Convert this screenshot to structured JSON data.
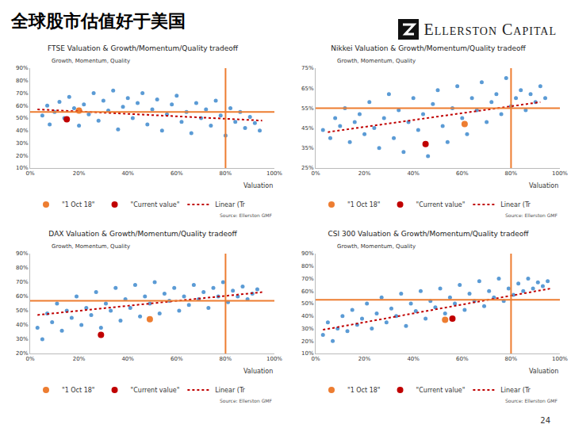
{
  "title": "全球股市估值好于美国",
  "logo": "Ellerston Capital",
  "page": "24",
  "chart_data": [
    {
      "type": "scatter",
      "title": "FTSE Valuation & Growth/Momentum/Quality tradeoff",
      "x_label": "Valuation",
      "y_label": "Growth, Momentum, Quality",
      "source": "Source: Ellerston GMF",
      "grid": false,
      "xlim": [
        0,
        100
      ],
      "xticks": [
        {
          "value": 0,
          "label": "0%"
        },
        {
          "value": 20,
          "label": "20%"
        },
        {
          "value": 40,
          "label": "40%"
        },
        {
          "value": 60,
          "label": "60%"
        },
        {
          "value": 80,
          "label": "80%"
        },
        {
          "value": 100,
          "label": "100%"
        }
      ],
      "ylim": [
        10,
        90
      ],
      "yticks": [
        {
          "value": 10,
          "label": "10%"
        },
        {
          "value": 20,
          "label": "20%"
        },
        {
          "value": 30,
          "label": "30%"
        },
        {
          "value": 40,
          "label": "40%"
        },
        {
          "value": 50,
          "label": "50%"
        },
        {
          "value": 60,
          "label": "60%"
        },
        {
          "value": 70,
          "label": "70%"
        },
        {
          "value": 80,
          "label": "80%"
        },
        {
          "value": 90,
          "label": "90%"
        }
      ],
      "crosshair": {
        "x": 80,
        "y": 55,
        "color": "#ed7d31"
      },
      "series": [
        {
          "color": "#5b9bd5",
          "marker": "circle",
          "x": [
            5,
            7,
            8,
            10,
            12,
            14,
            16,
            18,
            20,
            22,
            24,
            26,
            28,
            30,
            32,
            34,
            36,
            38,
            40,
            42,
            44,
            46,
            48,
            50,
            52,
            54,
            56,
            58,
            60,
            62,
            64,
            66,
            68,
            70,
            72,
            74,
            76,
            78,
            80,
            82,
            84,
            86,
            88,
            90,
            92,
            94
          ],
          "values": [
            52,
            60,
            45,
            55,
            63,
            50,
            67,
            58,
            44,
            61,
            53,
            70,
            48,
            64,
            56,
            72,
            41,
            59,
            66,
            50,
            62,
            70,
            45,
            57,
            65,
            40,
            53,
            61,
            68,
            47,
            55,
            38,
            62,
            50,
            57,
            44,
            64,
            52,
            36,
            58,
            47,
            55,
            42,
            51,
            46,
            40
          ]
        },
        {
          "name": "\"1 Oct 18\"",
          "color": "#ed7d31",
          "marker": "circle",
          "x": [
            20
          ],
          "values": [
            56
          ]
        },
        {
          "name": "\"Current value\"",
          "color": "#c00000",
          "marker": "circle",
          "x": [
            15
          ],
          "values": [
            49
          ]
        },
        {
          "name": "Linear (Tr",
          "type": "line",
          "line_style": "dotted",
          "color": "#c00000",
          "x": [
            3,
            95
          ],
          "values": [
            57,
            48
          ]
        }
      ]
    },
    {
      "type": "scatter",
      "title": "Nikkei Valuation & Growth/Momentum/Quality tradeoff",
      "x_label": "Valuation",
      "y_label": "Growth, Momentum, Quality",
      "source": "Source: Ellerston GMF",
      "grid": false,
      "xlim": [
        0,
        100
      ],
      "xticks": [
        {
          "value": 0,
          "label": "0%"
        },
        {
          "value": 20,
          "label": "20%"
        },
        {
          "value": 40,
          "label": "40%"
        },
        {
          "value": 60,
          "label": "60%"
        },
        {
          "value": 80,
          "label": "80%"
        },
        {
          "value": 100,
          "label": "100%"
        }
      ],
      "ylim": [
        25,
        75
      ],
      "yticks": [
        {
          "value": 25,
          "label": "25%"
        },
        {
          "value": 35,
          "label": "35%"
        },
        {
          "value": 45,
          "label": "45%"
        },
        {
          "value": 55,
          "label": "55%"
        },
        {
          "value": 65,
          "label": "65%"
        },
        {
          "value": 75,
          "label": "75%"
        }
      ],
      "crosshair": {
        "x": 80,
        "y": 55,
        "color": "#ed7d31"
      },
      "series": [
        {
          "color": "#5b9bd5",
          "marker": "circle",
          "x": [
            3,
            6,
            8,
            10,
            12,
            14,
            16,
            18,
            20,
            22,
            24,
            26,
            28,
            30,
            32,
            34,
            36,
            38,
            40,
            42,
            44,
            46,
            48,
            50,
            52,
            54,
            56,
            58,
            60,
            62,
            64,
            66,
            68,
            70,
            72,
            74,
            76,
            78,
            80,
            82,
            84,
            86,
            88,
            90,
            92,
            94
          ],
          "values": [
            44,
            40,
            50,
            46,
            55,
            38,
            48,
            52,
            42,
            58,
            45,
            35,
            50,
            62,
            40,
            54,
            33,
            48,
            60,
            44,
            52,
            31,
            57,
            64,
            46,
            38,
            55,
            66,
            50,
            42,
            60,
            54,
            68,
            48,
            58,
            62,
            52,
            70,
            56,
            60,
            64,
            54,
            62,
            58,
            66,
            60
          ]
        },
        {
          "name": "\"1 Oct 18\"",
          "color": "#ed7d31",
          "marker": "circle",
          "x": [
            61
          ],
          "values": [
            47
          ]
        },
        {
          "name": "\"Current value\"",
          "color": "#c00000",
          "marker": "circle",
          "x": [
            45
          ],
          "values": [
            37
          ]
        },
        {
          "name": "Linear (Tr",
          "type": "line",
          "line_style": "dotted",
          "color": "#c00000",
          "x": [
            5,
            92
          ],
          "values": [
            43,
            58
          ]
        }
      ]
    },
    {
      "type": "scatter",
      "title": "DAX Valuation & Growth/Momentum/Quality tradeoff",
      "x_label": "Valuation",
      "y_label": "Growth, Momentum, Quality",
      "source": "Source: Ellerston GMF",
      "grid": false,
      "xlim": [
        0,
        100
      ],
      "xticks": [
        {
          "value": 0,
          "label": "0%"
        },
        {
          "value": 20,
          "label": "20%"
        },
        {
          "value": 40,
          "label": "40%"
        },
        {
          "value": 60,
          "label": "60%"
        },
        {
          "value": 80,
          "label": "80%"
        },
        {
          "value": 100,
          "label": "100%"
        }
      ],
      "ylim": [
        20,
        90
      ],
      "yticks": [
        {
          "value": 20,
          "label": "20%"
        },
        {
          "value": 30,
          "label": "30%"
        },
        {
          "value": 40,
          "label": "40%"
        },
        {
          "value": 50,
          "label": "50%"
        },
        {
          "value": 60,
          "label": "60%"
        },
        {
          "value": 70,
          "label": "70%"
        },
        {
          "value": 80,
          "label": "80%"
        },
        {
          "value": 90,
          "label": "90%"
        }
      ],
      "crosshair": {
        "x": 80,
        "y": 57,
        "color": "#ed7d31"
      },
      "series": [
        {
          "color": "#5b9bd5",
          "marker": "circle",
          "x": [
            3,
            5,
            7,
            9,
            11,
            13,
            15,
            17,
            19,
            21,
            23,
            25,
            27,
            29,
            31,
            33,
            35,
            37,
            39,
            41,
            43,
            45,
            47,
            49,
            51,
            53,
            55,
            57,
            59,
            61,
            63,
            65,
            67,
            69,
            71,
            73,
            75,
            77,
            79,
            81,
            83,
            85,
            87,
            89,
            91,
            93
          ],
          "values": [
            38,
            30,
            48,
            42,
            55,
            36,
            50,
            45,
            60,
            40,
            52,
            47,
            63,
            38,
            55,
            50,
            66,
            43,
            58,
            52,
            68,
            46,
            60,
            55,
            70,
            48,
            62,
            57,
            66,
            50,
            60,
            54,
            68,
            58,
            63,
            52,
            66,
            60,
            70,
            56,
            64,
            60,
            67,
            58,
            62,
            65
          ]
        },
        {
          "name": "\"1 Oct 18\"",
          "color": "#ed7d31",
          "marker": "circle",
          "x": [
            49
          ],
          "values": [
            44
          ]
        },
        {
          "name": "\"Current value\"",
          "color": "#c00000",
          "marker": "circle",
          "x": [
            29
          ],
          "values": [
            33
          ]
        },
        {
          "name": "Linear (Tr",
          "type": "line",
          "line_style": "dotted",
          "color": "#c00000",
          "x": [
            3,
            95
          ],
          "values": [
            47,
            63
          ]
        }
      ]
    },
    {
      "type": "scatter",
      "title": "CSI 300 Valuation & Growth/Momentum/Quality tradeoff",
      "x_label": "Valuation",
      "y_label": "Growth, Momentum, Quality",
      "source": "Source: Ellerston GMF",
      "grid": false,
      "xlim": [
        0,
        100
      ],
      "xticks": [
        {
          "value": 0,
          "label": "0%"
        },
        {
          "value": 20,
          "label": "20%"
        },
        {
          "value": 40,
          "label": "40%"
        },
        {
          "value": 60,
          "label": "60%"
        },
        {
          "value": 80,
          "label": "80%"
        },
        {
          "value": 100,
          "label": "100%"
        }
      ],
      "ylim": [
        10,
        90
      ],
      "yticks": [
        {
          "value": 10,
          "label": "10%"
        },
        {
          "value": 20,
          "label": "20%"
        },
        {
          "value": 30,
          "label": "30%"
        },
        {
          "value": 40,
          "label": "40%"
        },
        {
          "value": 50,
          "label": "50%"
        },
        {
          "value": 60,
          "label": "60%"
        },
        {
          "value": 70,
          "label": "70%"
        },
        {
          "value": 80,
          "label": "80%"
        },
        {
          "value": 90,
          "label": "90%"
        }
      ],
      "crosshair": {
        "x": 80,
        "y": 53,
        "color": "#ed7d31"
      },
      "series": [
        {
          "color": "#5b9bd5",
          "marker": "circle",
          "x": [
            3,
            5,
            7,
            9,
            11,
            13,
            15,
            17,
            19,
            21,
            23,
            25,
            27,
            29,
            31,
            33,
            35,
            37,
            39,
            41,
            43,
            45,
            47,
            49,
            51,
            53,
            55,
            57,
            59,
            61,
            63,
            65,
            67,
            69,
            71,
            73,
            75,
            77,
            79,
            81,
            83,
            85,
            87,
            89,
            91,
            93,
            95
          ],
          "values": [
            25,
            35,
            20,
            30,
            40,
            28,
            45,
            33,
            38,
            50,
            30,
            42,
            55,
            35,
            46,
            40,
            58,
            32,
            50,
            44,
            60,
            38,
            52,
            47,
            62,
            42,
            55,
            50,
            65,
            45,
            58,
            52,
            68,
            48,
            60,
            55,
            70,
            52,
            62,
            57,
            66,
            60,
            70,
            62,
            67,
            64,
            68
          ]
        },
        {
          "name": "\"1 Oct 18\"",
          "color": "#ed7d31",
          "marker": "circle",
          "x": [
            53
          ],
          "values": [
            37
          ]
        },
        {
          "name": "\"Current value\"",
          "color": "#c00000",
          "marker": "circle",
          "x": [
            56
          ],
          "values": [
            38
          ]
        },
        {
          "name": "Linear (Tr",
          "type": "line",
          "line_style": "dotted",
          "color": "#c00000",
          "x": [
            3,
            96
          ],
          "values": [
            29,
            62
          ]
        }
      ]
    }
  ]
}
